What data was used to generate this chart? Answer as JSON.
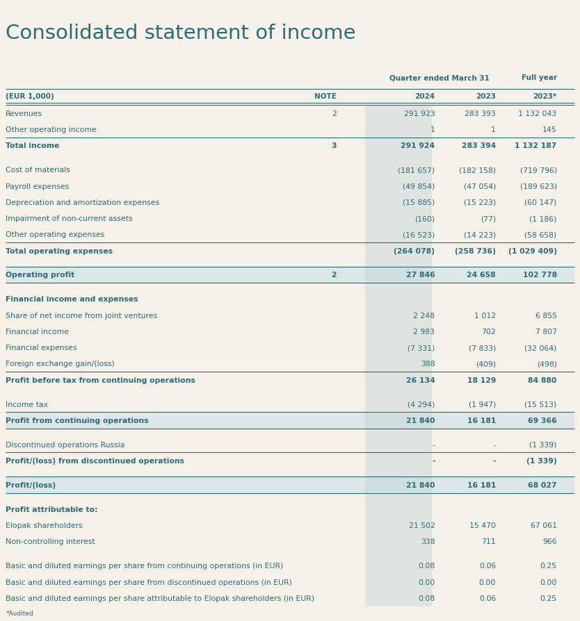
{
  "title": "Consolidated statement of income",
  "bg_color": "#f5f0e8",
  "stripe_bg": "#dce8e8",
  "shade_col_color": "#b8cfd2",
  "text_color": "#2a6b7c",
  "rows": [
    {
      "label": "Revenues",
      "note": "2",
      "q2024": "291 923",
      "q2023": "283 393",
      "fy2023": "1 132 043",
      "bold": false,
      "top_border": true,
      "bottom_border": false,
      "highlight": false,
      "spacer": false
    },
    {
      "label": "Other operating income",
      "note": "",
      "q2024": "1",
      "q2023": "1",
      "fy2023": "145",
      "bold": false,
      "top_border": false,
      "bottom_border": false,
      "highlight": false,
      "spacer": false
    },
    {
      "label": "Total income",
      "note": "3",
      "q2024": "291 924",
      "q2023": "283 394",
      "fy2023": "1 132 187",
      "bold": true,
      "top_border": true,
      "bottom_border": false,
      "highlight": false,
      "spacer": false
    },
    {
      "label": "",
      "note": "",
      "q2024": "",
      "q2023": "",
      "fy2023": "",
      "bold": false,
      "top_border": false,
      "bottom_border": false,
      "highlight": false,
      "spacer": true
    },
    {
      "label": "Cost of materials",
      "note": "",
      "q2024": "(181 657)",
      "q2023": "(182 158)",
      "fy2023": "(719 796)",
      "bold": false,
      "top_border": false,
      "bottom_border": false,
      "highlight": false,
      "spacer": false
    },
    {
      "label": "Payroll expenses",
      "note": "",
      "q2024": "(49 854)",
      "q2023": "(47 054)",
      "fy2023": "(189 623)",
      "bold": false,
      "top_border": false,
      "bottom_border": false,
      "highlight": false,
      "spacer": false
    },
    {
      "label": "Depreciation and amortization expenses",
      "note": "",
      "q2024": "(15 885)",
      "q2023": "(15 223)",
      "fy2023": "(60 147)",
      "bold": false,
      "top_border": false,
      "bottom_border": false,
      "highlight": false,
      "spacer": false
    },
    {
      "label": "Impairment of non-current assets",
      "note": "",
      "q2024": "(160)",
      "q2023": "(77)",
      "fy2023": "(1 186)",
      "bold": false,
      "top_border": false,
      "bottom_border": false,
      "highlight": false,
      "spacer": false
    },
    {
      "label": "Other operating expenses",
      "note": "",
      "q2024": "(16 523)",
      "q2023": "(14 223)",
      "fy2023": "(58 658)",
      "bold": false,
      "top_border": false,
      "bottom_border": false,
      "highlight": false,
      "spacer": false
    },
    {
      "label": "Total operating expenses",
      "note": "",
      "q2024": "(264 078)",
      "q2023": "(258 736)",
      "fy2023": "(1 029 409)",
      "bold": true,
      "top_border": true,
      "bottom_border": false,
      "highlight": false,
      "spacer": false
    },
    {
      "label": "",
      "note": "",
      "q2024": "",
      "q2023": "",
      "fy2023": "",
      "bold": false,
      "top_border": false,
      "bottom_border": false,
      "highlight": false,
      "spacer": true
    },
    {
      "label": "Operating profit",
      "note": "2",
      "q2024": "27 846",
      "q2023": "24 658",
      "fy2023": "102 778",
      "bold": true,
      "top_border": true,
      "bottom_border": true,
      "highlight": true,
      "spacer": false
    },
    {
      "label": "",
      "note": "",
      "q2024": "",
      "q2023": "",
      "fy2023": "",
      "bold": false,
      "top_border": false,
      "bottom_border": false,
      "highlight": false,
      "spacer": true
    },
    {
      "label": "Financial income and expenses",
      "note": "",
      "q2024": "",
      "q2023": "",
      "fy2023": "",
      "bold": true,
      "top_border": false,
      "bottom_border": false,
      "highlight": false,
      "spacer": false
    },
    {
      "label": "Share of net income from joint ventures",
      "note": "",
      "q2024": "2 248",
      "q2023": "1 012",
      "fy2023": "6 855",
      "bold": false,
      "top_border": false,
      "bottom_border": false,
      "highlight": false,
      "spacer": false
    },
    {
      "label": "Financial income",
      "note": "",
      "q2024": "2 983",
      "q2023": "702",
      "fy2023": "7 807",
      "bold": false,
      "top_border": false,
      "bottom_border": false,
      "highlight": false,
      "spacer": false
    },
    {
      "label": "Financial expenses",
      "note": "",
      "q2024": "(7 331)",
      "q2023": "(7 833)",
      "fy2023": "(32 064)",
      "bold": false,
      "top_border": false,
      "bottom_border": false,
      "highlight": false,
      "spacer": false
    },
    {
      "label": "Foreign exchange gain/(loss)",
      "note": "",
      "q2024": "388",
      "q2023": "(409)",
      "fy2023": "(498)",
      "bold": false,
      "top_border": false,
      "bottom_border": false,
      "highlight": false,
      "spacer": false
    },
    {
      "label": "Profit before tax from continuing operations",
      "note": "",
      "q2024": "26 134",
      "q2023": "18 129",
      "fy2023": "84 880",
      "bold": true,
      "top_border": true,
      "bottom_border": false,
      "highlight": false,
      "spacer": false
    },
    {
      "label": "",
      "note": "",
      "q2024": "",
      "q2023": "",
      "fy2023": "",
      "bold": false,
      "top_border": false,
      "bottom_border": false,
      "highlight": false,
      "spacer": true
    },
    {
      "label": "Income tax",
      "note": "",
      "q2024": "(4 294)",
      "q2023": "(1 947)",
      "fy2023": "(15 513)",
      "bold": false,
      "top_border": false,
      "bottom_border": false,
      "highlight": false,
      "spacer": false
    },
    {
      "label": "Profit from continuing operations",
      "note": "",
      "q2024": "21 840",
      "q2023": "16 181",
      "fy2023": "69 366",
      "bold": true,
      "top_border": true,
      "bottom_border": true,
      "highlight": true,
      "spacer": false
    },
    {
      "label": "",
      "note": "",
      "q2024": "",
      "q2023": "",
      "fy2023": "",
      "bold": false,
      "top_border": false,
      "bottom_border": false,
      "highlight": false,
      "spacer": true
    },
    {
      "label": "Discontinued operations Russia",
      "note": "",
      "q2024": "-",
      "q2023": "-",
      "fy2023": "(1 339)",
      "bold": false,
      "top_border": false,
      "bottom_border": false,
      "highlight": false,
      "spacer": false
    },
    {
      "label": "Profit/(loss) from discontinued operations",
      "note": "",
      "q2024": "-",
      "q2023": "-",
      "fy2023": "(1 339)",
      "bold": true,
      "top_border": true,
      "bottom_border": false,
      "highlight": false,
      "spacer": false
    },
    {
      "label": "",
      "note": "",
      "q2024": "",
      "q2023": "",
      "fy2023": "",
      "bold": false,
      "top_border": false,
      "bottom_border": false,
      "highlight": false,
      "spacer": true
    },
    {
      "label": "Profit/(loss)",
      "note": "",
      "q2024": "21 840",
      "q2023": "16 181",
      "fy2023": "68 027",
      "bold": true,
      "top_border": true,
      "bottom_border": true,
      "highlight": true,
      "spacer": false
    },
    {
      "label": "",
      "note": "",
      "q2024": "",
      "q2023": "",
      "fy2023": "",
      "bold": false,
      "top_border": false,
      "bottom_border": false,
      "highlight": false,
      "spacer": true
    },
    {
      "label": "Profit attributable to:",
      "note": "",
      "q2024": "",
      "q2023": "",
      "fy2023": "",
      "bold": true,
      "top_border": false,
      "bottom_border": false,
      "highlight": false,
      "spacer": false
    },
    {
      "label": "Elopak shareholders",
      "note": "",
      "q2024": "21 502",
      "q2023": "15 470",
      "fy2023": "67 061",
      "bold": false,
      "top_border": false,
      "bottom_border": false,
      "highlight": false,
      "spacer": false
    },
    {
      "label": "Non-controlling interest",
      "note": "",
      "q2024": "338",
      "q2023": "711",
      "fy2023": "966",
      "bold": false,
      "top_border": false,
      "bottom_border": false,
      "highlight": false,
      "spacer": false
    },
    {
      "label": "",
      "note": "",
      "q2024": "",
      "q2023": "",
      "fy2023": "",
      "bold": false,
      "top_border": false,
      "bottom_border": false,
      "highlight": false,
      "spacer": true
    },
    {
      "label": "Basic and diluted earnings per share from continuing operations (in EUR)",
      "note": "",
      "q2024": "0.08",
      "q2023": "0.06",
      "fy2023": "0.25",
      "bold": false,
      "top_border": false,
      "bottom_border": false,
      "highlight": false,
      "spacer": false
    },
    {
      "label": "Basic and diluted earnings per share from discontinued operations (in EUR)",
      "note": "",
      "q2024": "0.00",
      "q2023": "0.00",
      "fy2023": "0.00",
      "bold": false,
      "top_border": false,
      "bottom_border": false,
      "highlight": false,
      "spacer": false
    },
    {
      "label": "Basic and diluted earnings per share attributable to Elopak shareholders (in EUR)",
      "note": "",
      "q2024": "0.08",
      "q2023": "0.06",
      "fy2023": "0.25",
      "bold": false,
      "top_border": false,
      "bottom_border": false,
      "highlight": false,
      "spacer": false
    }
  ]
}
